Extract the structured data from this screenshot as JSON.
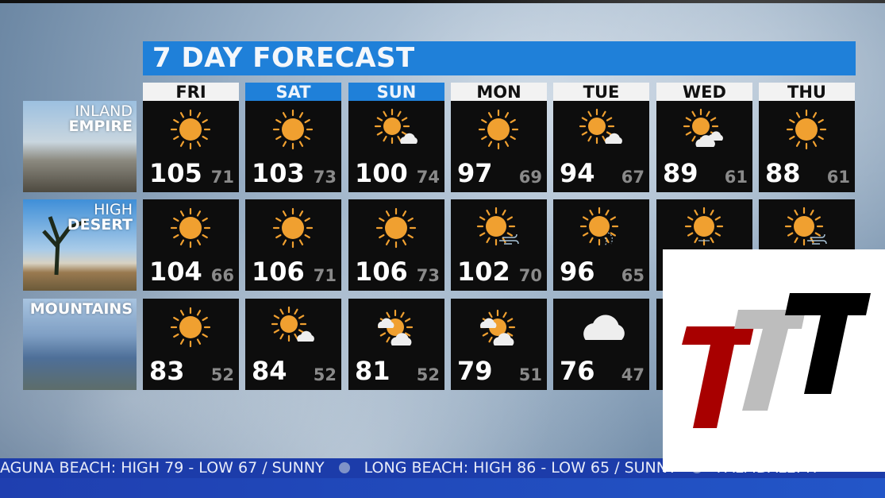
{
  "title": "7 DAY FORECAST",
  "days": [
    {
      "label": "FRI",
      "weekend": false
    },
    {
      "label": "SAT",
      "weekend": true
    },
    {
      "label": "SUN",
      "weekend": true
    },
    {
      "label": "MON",
      "weekend": false
    },
    {
      "label": "TUE",
      "weekend": false
    },
    {
      "label": "WED",
      "weekend": false
    },
    {
      "label": "THU",
      "weekend": false
    }
  ],
  "regions": [
    {
      "line1": "INLAND",
      "line2": "EMPIRE",
      "forecast": [
        {
          "icon": "sunny",
          "high": "105",
          "low": "71"
        },
        {
          "icon": "sunny",
          "high": "103",
          "low": "73"
        },
        {
          "icon": "sun-small-cloud",
          "high": "100",
          "low": "74"
        },
        {
          "icon": "sunny",
          "high": "97",
          "low": "69"
        },
        {
          "icon": "sun-small-cloud",
          "high": "94",
          "low": "67"
        },
        {
          "icon": "sun-cloud",
          "high": "89",
          "low": "61"
        },
        {
          "icon": "sunny",
          "high": "88",
          "low": "61"
        }
      ]
    },
    {
      "line1": "HIGH",
      "line2": "DESERT",
      "forecast": [
        {
          "icon": "sunny",
          "high": "104",
          "low": "66"
        },
        {
          "icon": "sunny",
          "high": "106",
          "low": "71"
        },
        {
          "icon": "sunny",
          "high": "106",
          "low": "73"
        },
        {
          "icon": "sun-wind",
          "high": "102",
          "low": "70"
        },
        {
          "icon": "sun-smoke",
          "high": "96",
          "low": "65"
        },
        {
          "icon": "sun-haze"
        },
        {
          "icon": "sun-wind"
        }
      ]
    },
    {
      "line1": "",
      "line2": "MOUNTAINS",
      "forecast": [
        {
          "icon": "sunny",
          "high": "83",
          "low": "52"
        },
        {
          "icon": "sun-small-cloud",
          "high": "84",
          "low": "52"
        },
        {
          "icon": "partly-cloudy",
          "high": "81",
          "low": "52"
        },
        {
          "icon": "partly-cloudy",
          "high": "79",
          "low": "51"
        },
        {
          "icon": "cloudy",
          "high": "76",
          "low": "47"
        },
        {
          "icon": "none"
        },
        {
          "icon": "none"
        }
      ]
    }
  ],
  "ticker": [
    "AGUNA BEACH: HIGH 79 - LOW 67 / SUNNY",
    "LONG BEACH: HIGH 86 - LOW 65 / SUNNY",
    "PALMDALE: H"
  ],
  "colors": {
    "title_bar": "#1f80d9",
    "sun": "#f0a030",
    "ticker": "#1c3caa",
    "logo_red": "#a80000",
    "logo_gray": "#bdbdbd",
    "logo_black": "#000000"
  }
}
